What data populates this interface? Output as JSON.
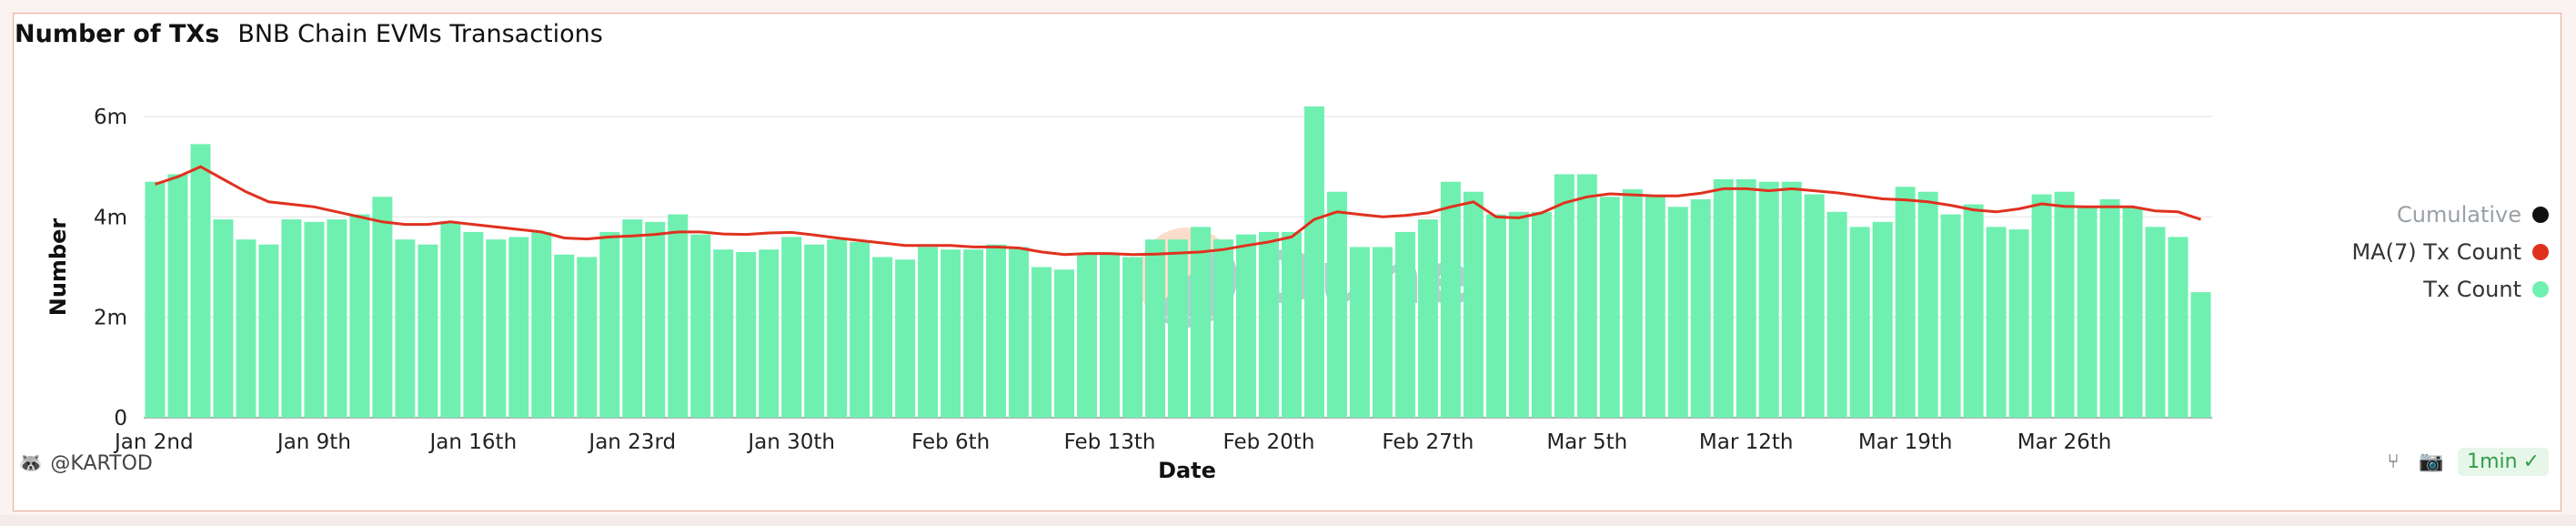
{
  "header": {
    "title": "Number of TXs",
    "subtitle": "BNB Chain EVMs Transactions"
  },
  "footer": {
    "author": "@KARTOD",
    "refresh": "1min"
  },
  "watermark": "Dune",
  "legend": [
    {
      "label": "Cumulative",
      "color": "#111111",
      "muted": true
    },
    {
      "label": "MA(7) Tx Count",
      "color": "#e0311f",
      "muted": false
    },
    {
      "label": "Tx Count",
      "color": "#6ff0b0",
      "muted": false
    }
  ],
  "chart_data": {
    "type": "bar",
    "xlabel": "Date",
    "ylabel": "Number",
    "ylim": [
      0,
      6000000
    ],
    "yticks": [
      {
        "v": 0,
        "label": "0"
      },
      {
        "v": 2000000,
        "label": "2m"
      },
      {
        "v": 4000000,
        "label": "4m"
      },
      {
        "v": 6000000,
        "label": "6m"
      }
    ],
    "xticks": [
      {
        "i": 0,
        "label": "Jan 2nd"
      },
      {
        "i": 7,
        "label": "Jan 9th"
      },
      {
        "i": 14,
        "label": "Jan 16th"
      },
      {
        "i": 21,
        "label": "Jan 23rd"
      },
      {
        "i": 28,
        "label": "Jan 30th"
      },
      {
        "i": 35,
        "label": "Feb 6th"
      },
      {
        "i": 42,
        "label": "Feb 13th"
      },
      {
        "i": 49,
        "label": "Feb 20th"
      },
      {
        "i": 56,
        "label": "Feb 27th"
      },
      {
        "i": 63,
        "label": "Mar 5th"
      },
      {
        "i": 70,
        "label": "Mar 12th"
      },
      {
        "i": 77,
        "label": "Mar 19th"
      },
      {
        "i": 84,
        "label": "Mar 26th"
      }
    ],
    "grid": true,
    "legend_position": "right",
    "series": [
      {
        "name": "Tx Count",
        "type": "bar",
        "color": "#6ff0b0",
        "values": [
          4700000,
          4850000,
          5450000,
          3950000,
          3550000,
          3450000,
          3950000,
          3900000,
          3950000,
          4050000,
          4400000,
          3550000,
          3450000,
          3900000,
          3700000,
          3550000,
          3600000,
          3700000,
          3250000,
          3200000,
          3700000,
          3950000,
          3900000,
          4050000,
          3650000,
          3350000,
          3300000,
          3350000,
          3600000,
          3450000,
          3550000,
          3500000,
          3200000,
          3150000,
          3400000,
          3350000,
          3350000,
          3450000,
          3400000,
          3000000,
          2950000,
          3250000,
          3250000,
          3200000,
          3550000,
          3550000,
          3800000,
          3550000,
          3650000,
          3700000,
          3700000,
          6200000,
          4500000,
          3400000,
          3400000,
          3700000,
          3950000,
          4700000,
          4500000,
          4050000,
          4100000,
          4100000,
          4850000,
          4850000,
          4400000,
          4550000,
          4400000,
          4200000,
          4350000,
          4750000,
          4750000,
          4700000,
          4700000,
          4450000,
          4100000,
          3800000,
          3900000,
          4600000,
          4500000,
          4050000,
          4250000,
          3800000,
          3750000,
          4450000,
          4500000,
          4200000,
          4350000,
          4200000,
          3800000,
          3600000,
          2500000
        ]
      },
      {
        "name": "MA(7) Tx Count",
        "type": "line",
        "color": "#e0311f",
        "values": [
          4650000,
          4800000,
          5000000,
          4750000,
          4500000,
          4300000,
          4250000,
          4200000,
          4100000,
          4000000,
          3900000,
          3850000,
          3850000,
          3900000,
          3850000,
          3800000,
          3750000,
          3700000,
          3580000,
          3560000,
          3600000,
          3620000,
          3650000,
          3700000,
          3700000,
          3660000,
          3650000,
          3680000,
          3690000,
          3640000,
          3580000,
          3530000,
          3480000,
          3430000,
          3430000,
          3430000,
          3400000,
          3400000,
          3380000,
          3300000,
          3250000,
          3270000,
          3270000,
          3250000,
          3260000,
          3280000,
          3300000,
          3350000,
          3430000,
          3500000,
          3600000,
          3950000,
          4100000,
          4050000,
          4000000,
          4030000,
          4080000,
          4200000,
          4300000,
          4000000,
          3980000,
          4080000,
          4280000,
          4400000,
          4460000,
          4440000,
          4420000,
          4420000,
          4470000,
          4560000,
          4560000,
          4520000,
          4560000,
          4520000,
          4480000,
          4420000,
          4360000,
          4340000,
          4300000,
          4230000,
          4140000,
          4100000,
          4160000,
          4260000,
          4210000,
          4200000,
          4200000,
          4200000,
          4120000,
          4100000,
          3950000
        ]
      }
    ]
  }
}
